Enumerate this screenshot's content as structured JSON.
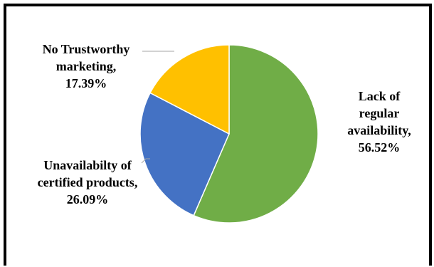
{
  "chart_data": {
    "type": "pie",
    "title": "",
    "slices": [
      {
        "label_lines": [
          "Lack of",
          "regular",
          "availability,",
          "56.52%"
        ],
        "category": "Lack of regular availability",
        "value": 56.52,
        "color": "#70AD47"
      },
      {
        "label_lines": [
          "Unavailabilty  of",
          "certified products,",
          "26.09%"
        ],
        "category": "Unavailabilty of certified products",
        "value": 26.09,
        "color": "#4472C4"
      },
      {
        "label_lines": [
          "No Trustworthy",
          "marketing,",
          "17.39%"
        ],
        "category": "No Trustworthy marketing",
        "value": 17.39,
        "color": "#FFC000"
      }
    ],
    "legend": "none"
  }
}
